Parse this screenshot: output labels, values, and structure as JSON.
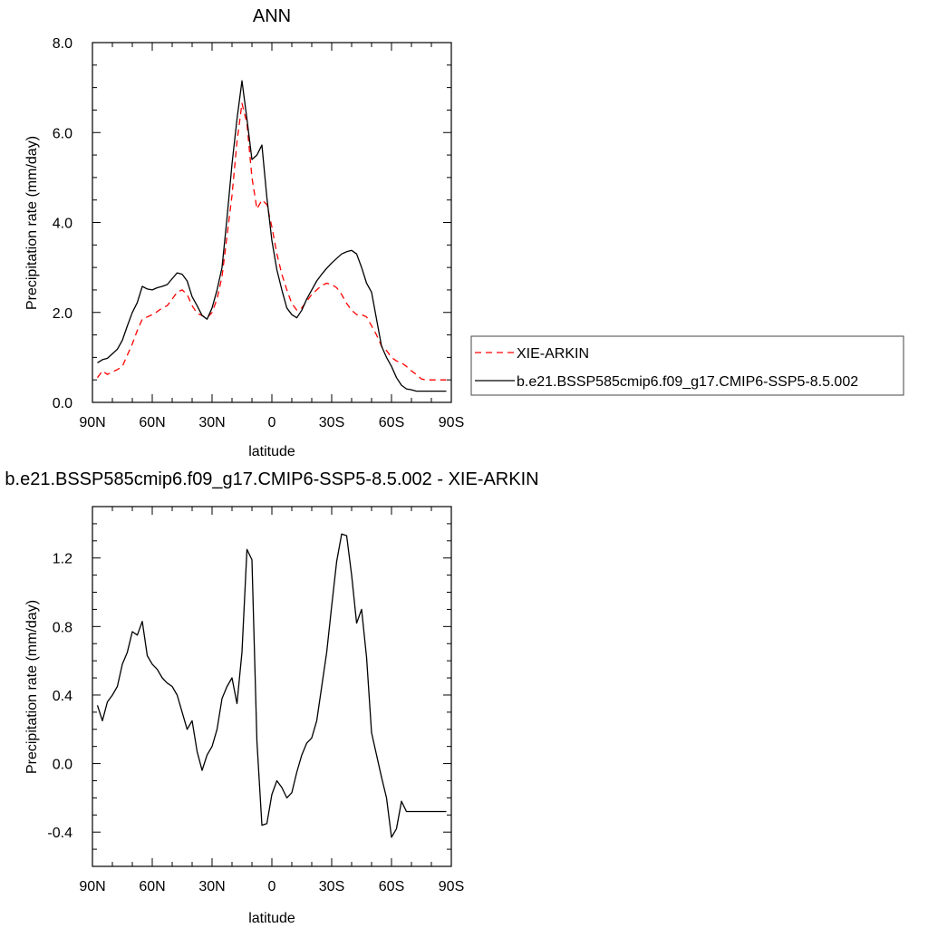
{
  "colors": {
    "observed": "#ff0000",
    "model": "#000000",
    "background": "#ffffff"
  },
  "legend": {
    "placement": "right of top panel",
    "entries": [
      {
        "label": "XIE-ARKIN",
        "style": "dashed",
        "color": "#ff0000"
      },
      {
        "label": "b.e21.BSSP585cmip6.f09_g17.CMIP6-SSP5-8.5.002",
        "style": "solid",
        "color": "#000000"
      }
    ]
  },
  "chart_data": [
    {
      "type": "line",
      "title": "ANN",
      "xlabel": "latitude",
      "ylabel": "Precipitation rate (mm/day)",
      "xlim": [
        90,
        -90
      ],
      "ylim": [
        0,
        8
      ],
      "xticks": [
        90,
        60,
        30,
        0,
        -30,
        -60,
        -90
      ],
      "xticklabels": [
        "90N",
        "60N",
        "30N",
        "0",
        "30S",
        "60S",
        "90S"
      ],
      "yticks": [
        0,
        2,
        4,
        6,
        8
      ],
      "yticklabels": [
        "0.0",
        "2.0",
        "4.0",
        "6.0",
        "8.0"
      ],
      "grid": false,
      "series": [
        {
          "name": "XIE-ARKIN",
          "style": "dashed",
          "color": "#ff0000",
          "x": [
            87.5,
            85,
            82.5,
            80,
            77.5,
            75,
            72.5,
            70,
            67.5,
            65,
            62.5,
            60,
            57.5,
            55,
            52.5,
            50,
            47.5,
            45,
            42.5,
            40,
            37.5,
            35,
            32.5,
            30,
            27.5,
            25,
            22.5,
            20,
            17.5,
            15,
            12.5,
            10,
            7.5,
            5,
            2.5,
            0,
            -2.5,
            -5,
            -7.5,
            -10,
            -12.5,
            -15,
            -17.5,
            -20,
            -22.5,
            -25,
            -27.5,
            -30,
            -32.5,
            -35,
            -37.5,
            -40,
            -42.5,
            -45,
            -47.5,
            -50,
            -52.5,
            -55,
            -57.5,
            -60,
            -62.5,
            -65,
            -67.5,
            -70,
            -72.5,
            -75,
            -77.5,
            -80,
            -82.5,
            -85,
            -87.5
          ],
          "y": [
            0.55,
            0.7,
            0.62,
            0.68,
            0.73,
            0.8,
            1.05,
            1.3,
            1.6,
            1.85,
            1.9,
            1.95,
            2.02,
            2.1,
            2.15,
            2.3,
            2.45,
            2.5,
            2.4,
            2.15,
            1.98,
            1.93,
            1.88,
            2.0,
            2.3,
            2.8,
            3.7,
            4.6,
            5.8,
            6.65,
            6.2,
            5.0,
            4.3,
            4.5,
            4.4,
            3.9,
            3.3,
            2.85,
            2.5,
            2.2,
            2.05,
            2.1,
            2.25,
            2.4,
            2.5,
            2.6,
            2.65,
            2.62,
            2.55,
            2.4,
            2.2,
            2.05,
            1.95,
            1.95,
            1.9,
            1.7,
            1.5,
            1.25,
            1.15,
            1.0,
            0.92,
            0.88,
            0.8,
            0.7,
            0.62,
            0.52,
            0.5,
            0.5,
            0.5,
            0.5,
            0.5
          ]
        },
        {
          "name": "b.e21.BSSP585cmip6.f09_g17.CMIP6-SSP5-8.5.002",
          "style": "solid",
          "color": "#000000",
          "x": [
            87.5,
            85,
            82.5,
            80,
            77.5,
            75,
            72.5,
            70,
            67.5,
            65,
            62.5,
            60,
            57.5,
            55,
            52.5,
            50,
            47.5,
            45,
            42.5,
            40,
            37.5,
            35,
            32.5,
            30,
            27.5,
            25,
            22.5,
            20,
            17.5,
            15,
            12.5,
            10,
            7.5,
            5,
            2.5,
            0,
            -2.5,
            -5,
            -7.5,
            -10,
            -12.5,
            -15,
            -17.5,
            -20,
            -22.5,
            -25,
            -27.5,
            -30,
            -32.5,
            -35,
            -37.5,
            -40,
            -42.5,
            -45,
            -47.5,
            -50,
            -52.5,
            -55,
            -57.5,
            -60,
            -62.5,
            -65,
            -67.5,
            -70,
            -72.5,
            -75,
            -77.5,
            -80,
            -82.5,
            -85,
            -87.5
          ],
          "y": [
            0.88,
            0.95,
            0.98,
            1.08,
            1.18,
            1.38,
            1.7,
            2.0,
            2.22,
            2.58,
            2.52,
            2.5,
            2.55,
            2.58,
            2.62,
            2.75,
            2.88,
            2.85,
            2.7,
            2.35,
            2.15,
            1.93,
            1.85,
            2.1,
            2.5,
            3.0,
            4.1,
            5.3,
            6.3,
            7.15,
            6.3,
            5.4,
            5.5,
            5.72,
            4.55,
            3.6,
            2.95,
            2.5,
            2.1,
            1.95,
            1.88,
            2.05,
            2.3,
            2.5,
            2.7,
            2.85,
            2.98,
            3.1,
            3.2,
            3.3,
            3.35,
            3.38,
            3.3,
            3.0,
            2.65,
            2.45,
            1.85,
            1.25,
            1.0,
            0.8,
            0.55,
            0.38,
            0.3,
            0.28,
            0.25,
            0.25,
            0.25,
            0.25,
            0.25,
            0.25,
            0.25
          ]
        }
      ]
    },
    {
      "type": "line",
      "title": "b.e21.BSSP585cmip6.f09_g17.CMIP6-SSP5-8.5.002 - XIE-ARKIN",
      "xlabel": "latitude",
      "ylabel": "Precipitation rate (mm/day)",
      "xlim": [
        90,
        -90
      ],
      "ylim": [
        -0.6,
        1.5
      ],
      "xticks": [
        90,
        60,
        30,
        0,
        -30,
        -60,
        -90
      ],
      "xticklabels": [
        "90N",
        "60N",
        "30N",
        "0",
        "30S",
        "60S",
        "90S"
      ],
      "yticks": [
        -0.4,
        0.0,
        0.4,
        0.8,
        1.2
      ],
      "yticklabels": [
        "-0.4",
        "0.0",
        "0.4",
        "0.8",
        "1.2"
      ],
      "grid": false,
      "series": [
        {
          "style": "solid",
          "color": "#000000",
          "x": [
            87.5,
            85,
            82.5,
            80,
            77.5,
            75,
            72.5,
            70,
            67.5,
            65,
            62.5,
            60,
            57.5,
            55,
            52.5,
            50,
            47.5,
            45,
            42.5,
            40,
            37.5,
            35,
            32.5,
            30,
            27.5,
            25,
            22.5,
            20,
            17.5,
            15,
            12.5,
            10,
            7.5,
            5,
            2.5,
            0,
            -2.5,
            -5,
            -7.5,
            -10,
            -12.5,
            -15,
            -17.5,
            -20,
            -22.5,
            -25,
            -27.5,
            -30,
            -32.5,
            -35,
            -37.5,
            -40,
            -42.5,
            -45,
            -47.5,
            -50,
            -52.5,
            -55,
            -57.5,
            -60,
            -62.5,
            -65,
            -67.5,
            -70,
            -72.5,
            -75,
            -77.5,
            -80,
            -82.5,
            -85,
            -87.5
          ],
          "y": [
            0.34,
            0.25,
            0.36,
            0.4,
            0.45,
            0.58,
            0.65,
            0.77,
            0.75,
            0.83,
            0.63,
            0.58,
            0.55,
            0.5,
            0.47,
            0.45,
            0.4,
            0.3,
            0.2,
            0.25,
            0.07,
            -0.04,
            0.05,
            0.1,
            0.2,
            0.38,
            0.45,
            0.5,
            0.35,
            0.65,
            1.25,
            1.19,
            0.13,
            -0.36,
            -0.35,
            -0.18,
            -0.1,
            -0.14,
            -0.2,
            -0.17,
            -0.05,
            0.05,
            0.12,
            0.15,
            0.25,
            0.45,
            0.65,
            0.92,
            1.18,
            1.34,
            1.33,
            1.1,
            0.82,
            0.9,
            0.62,
            0.18,
            0.05,
            -0.08,
            -0.2,
            -0.43,
            -0.38,
            -0.22,
            -0.28,
            -0.28,
            -0.28,
            -0.28,
            -0.28,
            -0.28,
            -0.28,
            -0.28,
            -0.28
          ]
        }
      ]
    }
  ]
}
